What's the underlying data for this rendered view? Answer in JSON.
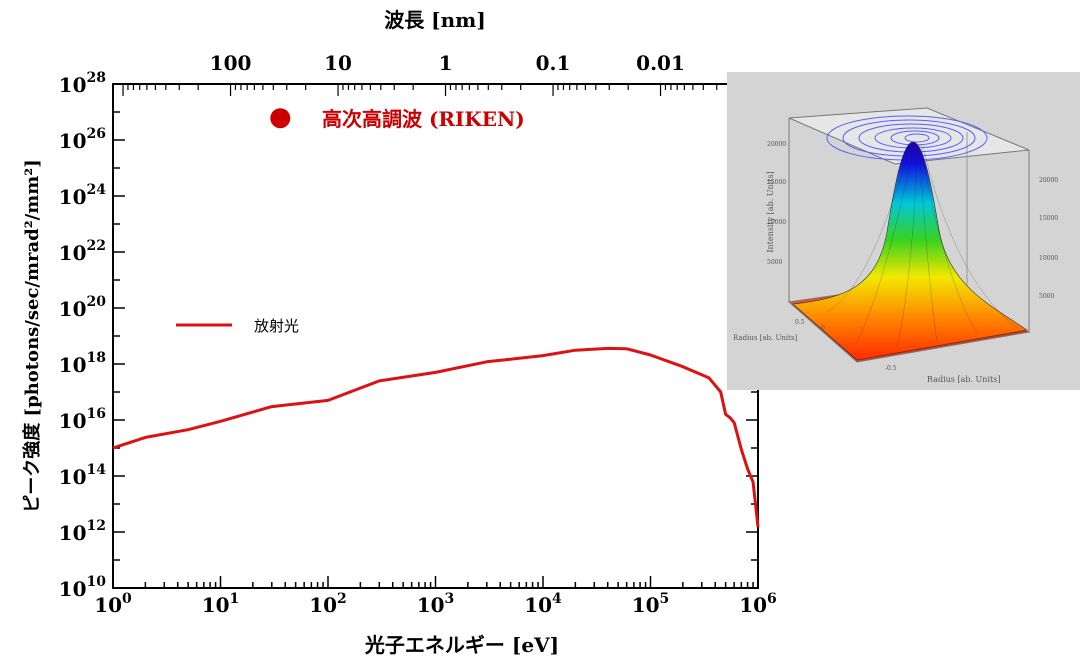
{
  "chart_data": {
    "type": "line",
    "x_axis": {
      "label": "光子エネルギー [eV]",
      "scale": "log",
      "range": [
        1,
        1000000
      ],
      "ticks": [
        {
          "base": "10",
          "exp": "0"
        },
        {
          "base": "10",
          "exp": "1"
        },
        {
          "base": "10",
          "exp": "2"
        },
        {
          "base": "10",
          "exp": "3"
        },
        {
          "base": "10",
          "exp": "4"
        },
        {
          "base": "10",
          "exp": "5"
        },
        {
          "base": "10",
          "exp": "6"
        }
      ]
    },
    "top_axis": {
      "label": "波長 [nm]",
      "scale": "log",
      "ticks": [
        "100",
        "10",
        "1",
        "0.1",
        "0.01"
      ],
      "tick_values_nm": [
        100,
        10,
        1,
        0.1,
        0.01
      ]
    },
    "y_axis": {
      "label": "ピーク強度 [photons/sec/mrad²/mm²]",
      "scale": "log",
      "range": [
        10000000000.0,
        1e+28
      ],
      "ticks": [
        {
          "base": "10",
          "exp": "10"
        },
        {
          "base": "10",
          "exp": "12"
        },
        {
          "base": "10",
          "exp": "14"
        },
        {
          "base": "10",
          "exp": "16"
        },
        {
          "base": "10",
          "exp": "18"
        },
        {
          "base": "10",
          "exp": "20"
        },
        {
          "base": "10",
          "exp": "22"
        },
        {
          "base": "10",
          "exp": "24"
        },
        {
          "base": "10",
          "exp": "26"
        },
        {
          "base": "10",
          "exp": "28"
        }
      ]
    },
    "series": [
      {
        "name": "放射光",
        "color": "#dd1111",
        "type": "line",
        "x": [
          1,
          2,
          5,
          10,
          30,
          100,
          300,
          1000,
          3000,
          10000,
          20000,
          40000,
          60000,
          100000,
          200000,
          350000,
          450000,
          500000,
          550000,
          600000,
          700000,
          800000,
          900000,
          1000000
        ],
        "y": [
          1000000000000000.0,
          2400000000000000.0,
          4500000000000000.0,
          9000000000000000.0,
          3e+16,
          5e+16,
          2.5e+17,
          5e+17,
          1.2e+18,
          2e+18,
          3.1e+18,
          3.6e+18,
          3.5e+18,
          2.1e+18,
          8e+17,
          3.2e+17,
          1e+17,
          1.6e+16,
          1.2e+16,
          8000000000000000.0,
          900000000000000.0,
          180000000000000.0,
          60000000000000.0,
          1500000000000.0
        ]
      },
      {
        "name": "高次高調波 (RIKEN)",
        "color": "#cc0000",
        "type": "scatter",
        "x": [
          36
        ],
        "y": [
          6e+26
        ]
      }
    ],
    "legend": {
      "placement": "left-middle",
      "entries": [
        "放射光"
      ]
    },
    "annotation": "高次高調波 (RIKEN)",
    "inset": {
      "type": "3d-surface",
      "axis_labels": {
        "z": "Intensity [ab. Units]",
        "y": "Radius [ab. Units]",
        "x": "Radius [ab. Units]"
      },
      "z_ticks": [
        "20000",
        "15000",
        "10000",
        "5000"
      ],
      "z_ticks_right": [
        "20000",
        "15000",
        "10000",
        "5000"
      ],
      "radius_ticks": [
        "0.5",
        "0",
        "-0.5"
      ]
    }
  }
}
